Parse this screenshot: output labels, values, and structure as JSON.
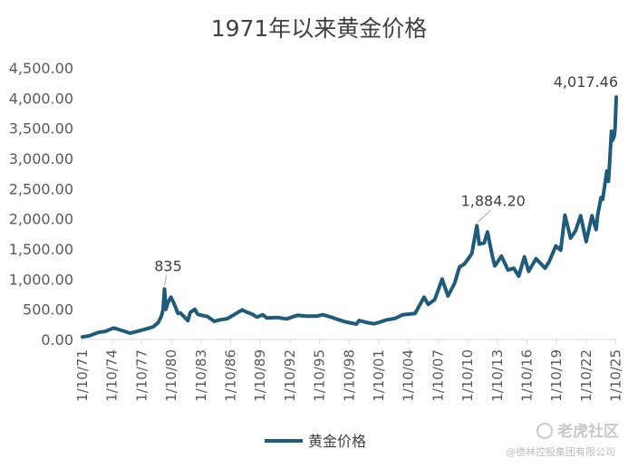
{
  "chart_data": {
    "type": "line",
    "title": "1971年以来黄金价格",
    "xlabel": "",
    "ylabel": "",
    "ylim": [
      0,
      4500
    ],
    "yticks": [
      0,
      500,
      1000,
      1500,
      2000,
      2500,
      3000,
      3500,
      4000,
      4500
    ],
    "ytick_labels": [
      "0.00",
      "500.00",
      "1,000.00",
      "1,500.00",
      "2,000.00",
      "2,500.00",
      "3,000.00",
      "3,500.00",
      "4,000.00",
      "4,500.00"
    ],
    "xlim": [
      "1971-10-01",
      "2025-10-15"
    ],
    "xticks": [
      "1971-10-01",
      "1974-10-01",
      "1977-10-01",
      "1980-10-01",
      "1983-10-01",
      "1986-10-01",
      "1989-10-01",
      "1992-10-01",
      "1995-10-01",
      "1998-10-01",
      "2001-10-01",
      "2004-10-01",
      "2007-10-01",
      "2010-10-01",
      "2013-10-01",
      "2016-10-01",
      "2019-10-01",
      "2022-10-01",
      "2025-10-01"
    ],
    "xtick_labels": [
      "1/10/71",
      "1/10/74",
      "1/10/77",
      "1/10/80",
      "1/10/83",
      "1/10/86",
      "1/10/89",
      "1/10/92",
      "1/10/95",
      "1/10/98",
      "1/10/01",
      "1/10/04",
      "1/10/07",
      "1/10/10",
      "1/10/13",
      "1/10/16",
      "1/10/19",
      "1/10/22",
      "1/10/25"
    ],
    "grid": false,
    "legend_position": "bottom",
    "series": [
      {
        "name": "黄金价格",
        "color": "#1f5b7a",
        "points": [
          [
            "1971-10-01",
            42
          ],
          [
            "1972-06-01",
            60
          ],
          [
            "1973-06-01",
            120
          ],
          [
            "1974-01-01",
            130
          ],
          [
            "1974-12-01",
            190
          ],
          [
            "1975-06-01",
            165
          ],
          [
            "1976-08-01",
            105
          ],
          [
            "1977-06-01",
            140
          ],
          [
            "1978-06-01",
            185
          ],
          [
            "1978-12-01",
            210
          ],
          [
            "1979-06-01",
            280
          ],
          [
            "1979-10-01",
            390
          ],
          [
            "1979-12-01",
            500
          ],
          [
            "1980-01-21",
            835
          ],
          [
            "1980-03-15",
            500
          ],
          [
            "1980-06-01",
            620
          ],
          [
            "1980-09-15",
            700
          ],
          [
            "1981-01-01",
            600
          ],
          [
            "1981-06-01",
            430
          ],
          [
            "1981-09-01",
            440
          ],
          [
            "1982-06-01",
            310
          ],
          [
            "1982-09-01",
            450
          ],
          [
            "1983-02-15",
            500
          ],
          [
            "1983-06-01",
            415
          ],
          [
            "1984-06-01",
            380
          ],
          [
            "1985-02-01",
            300
          ],
          [
            "1985-09-01",
            325
          ],
          [
            "1986-06-01",
            345
          ],
          [
            "1987-01-01",
            400
          ],
          [
            "1987-12-01",
            490
          ],
          [
            "1988-06-01",
            450
          ],
          [
            "1988-12-01",
            420
          ],
          [
            "1989-06-01",
            370
          ],
          [
            "1990-01-01",
            410
          ],
          [
            "1990-06-01",
            355
          ],
          [
            "1991-06-01",
            365
          ],
          [
            "1992-06-01",
            340
          ],
          [
            "1993-07-01",
            400
          ],
          [
            "1994-06-01",
            385
          ],
          [
            "1995-06-01",
            385
          ],
          [
            "1996-02-01",
            410
          ],
          [
            "1996-12-01",
            370
          ],
          [
            "1997-06-01",
            340
          ],
          [
            "1998-06-01",
            290
          ],
          [
            "1999-07-01",
            255
          ],
          [
            "1999-10-01",
            315
          ],
          [
            "2000-06-01",
            285
          ],
          [
            "2001-04-01",
            260
          ],
          [
            "2001-10-01",
            280
          ],
          [
            "2002-06-01",
            320
          ],
          [
            "2003-06-01",
            350
          ],
          [
            "2004-03-01",
            410
          ],
          [
            "2005-06-01",
            430
          ],
          [
            "2006-05-01",
            700
          ],
          [
            "2006-10-01",
            580
          ],
          [
            "2007-06-01",
            660
          ],
          [
            "2008-03-01",
            1000
          ],
          [
            "2008-10-01",
            720
          ],
          [
            "2009-06-01",
            930
          ],
          [
            "2009-12-01",
            1200
          ],
          [
            "2010-06-01",
            1250
          ],
          [
            "2011-03-01",
            1420
          ],
          [
            "2011-09-06",
            1884.2
          ],
          [
            "2011-12-01",
            1580
          ],
          [
            "2012-06-01",
            1600
          ],
          [
            "2012-10-01",
            1780
          ],
          [
            "2013-04-01",
            1380
          ],
          [
            "2013-07-01",
            1220
          ],
          [
            "2014-03-01",
            1380
          ],
          [
            "2014-11-01",
            1150
          ],
          [
            "2015-06-01",
            1180
          ],
          [
            "2015-12-01",
            1050
          ],
          [
            "2016-07-01",
            1370
          ],
          [
            "2016-12-01",
            1130
          ],
          [
            "2017-09-01",
            1340
          ],
          [
            "2018-08-01",
            1180
          ],
          [
            "2019-01-01",
            1290
          ],
          [
            "2019-09-01",
            1550
          ],
          [
            "2020-03-01",
            1480
          ],
          [
            "2020-08-06",
            2060
          ],
          [
            "2021-03-01",
            1680
          ],
          [
            "2021-09-01",
            1800
          ],
          [
            "2022-03-08",
            2050
          ],
          [
            "2022-09-28",
            1620
          ],
          [
            "2023-05-01",
            2050
          ],
          [
            "2023-10-01",
            1820
          ],
          [
            "2023-12-01",
            2070
          ],
          [
            "2024-04-01",
            2350
          ],
          [
            "2024-06-01",
            2320
          ],
          [
            "2024-10-30",
            2790
          ],
          [
            "2024-12-30",
            2620
          ],
          [
            "2025-02-01",
            2850
          ],
          [
            "2025-04-21",
            3450
          ],
          [
            "2025-06-01",
            3300
          ],
          [
            "2025-08-01",
            3370
          ],
          [
            "2025-09-01",
            3500
          ],
          [
            "2025-10-01",
            3860
          ],
          [
            "2025-10-15",
            4017.46
          ]
        ]
      }
    ],
    "annotations": [
      {
        "label": "835",
        "x": "1980-01-21",
        "y": 835
      },
      {
        "label": "1,884.20",
        "x": "2011-09-06",
        "y": 1884.2
      },
      {
        "label": "4,017.46",
        "x": "2025-10-15",
        "y": 4017.46
      }
    ]
  },
  "watermark": {
    "logo_text": "老虎社区",
    "sub_text": "@德林控股集团有限公司"
  }
}
